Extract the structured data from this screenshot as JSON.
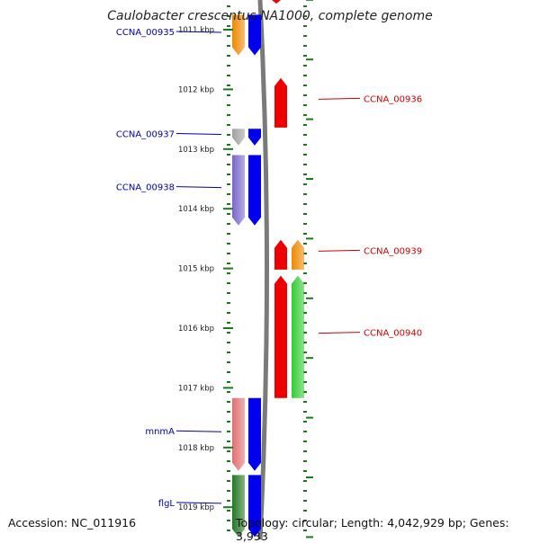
{
  "title": "Caulobacter crescentus NA1000, complete genome",
  "footer": {
    "accession": "Accession: NC_011916",
    "topology": "Topology: circular; Length: 4,042,929 bp; Genes: 3,933"
  },
  "axis": {
    "unit": "kbp",
    "ticks": [
      "1011 kbp",
      "1012 kbp",
      "1013 kbp",
      "1014 kbp",
      "1015 kbp",
      "1016 kbp",
      "1017 kbp",
      "1018 kbp",
      "1019 kbp"
    ]
  },
  "colors": {
    "forward_label": "#0000aa",
    "reverse_label": "#cc0000",
    "tick": "#1a7a1a",
    "backbone": "#7a7a7a"
  },
  "genes": [
    {
      "name": "CCNA_00935",
      "strand": "forward",
      "start_kbp": 1010.75,
      "end_kbp": 1011.43,
      "cog_color": "#ee8800"
    },
    {
      "name": "CCNA_00936",
      "strand": "reverse",
      "start_kbp": 1011.81,
      "end_kbp": 1012.64,
      "cog_color": "#ee0000"
    },
    {
      "name": "CCNA_00937",
      "strand": "forward",
      "start_kbp": 1012.66,
      "end_kbp": 1012.94,
      "cog_color": "#a0a0a0"
    },
    {
      "name": "CCNA_00938",
      "strand": "forward",
      "start_kbp": 1013.1,
      "end_kbp": 1014.28,
      "cog_color": "#7a66cc"
    },
    {
      "name": "CCNA_00939",
      "strand": "reverse",
      "start_kbp": 1014.52,
      "end_kbp": 1015.02,
      "cog_color": "#ee8800"
    },
    {
      "name": "CCNA_00940",
      "strand": "reverse",
      "start_kbp": 1015.12,
      "end_kbp": 1017.17,
      "cog_color": "#33cc33"
    },
    {
      "name": "mnmA",
      "strand": "forward",
      "start_kbp": 1017.17,
      "end_kbp": 1018.39,
      "cog_color": "#e07070"
    },
    {
      "name": "flgL",
      "strand": "forward",
      "start_kbp": 1018.46,
      "end_kbp": 1019.5,
      "cog_color": "#227722"
    }
  ]
}
